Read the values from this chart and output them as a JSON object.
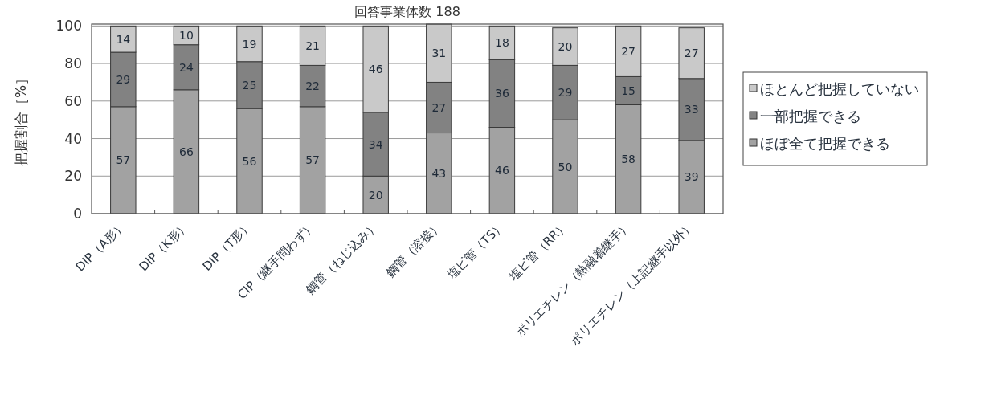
{
  "chart_data": {
    "type": "bar",
    "title": "回答事業体数 188",
    "ylabel": "把握割合［%］",
    "categories": [
      "DIP（A形）",
      "DIP（K形）",
      "DIP（T形）",
      "CIP（継手問わず）",
      "鋼管（ねじ込み）",
      "鋼管（溶接）",
      "塩ビ管（TS）",
      "塩ビ管（RR）",
      "ポリエチレン（熱融着継手）",
      "ポリエチレン（上記継手以外）"
    ],
    "series": [
      {
        "name": "ほぼ全て把握できる",
        "color": "#a2a2a2",
        "values": [
          57,
          66,
          56,
          57,
          20,
          43,
          46,
          50,
          58,
          39
        ]
      },
      {
        "name": "一部把握できる",
        "color": "#828282",
        "values": [
          29,
          24,
          25,
          22,
          34,
          27,
          36,
          29,
          15,
          33
        ]
      },
      {
        "name": "ほとんど把握していない",
        "color": "#c9c9c9",
        "values": [
          14,
          10,
          19,
          21,
          46,
          31,
          18,
          20,
          27,
          27
        ]
      }
    ],
    "stacked": true,
    "data_labels": true,
    "ylim": [
      0,
      101
    ],
    "yticks": [
      0,
      20,
      40,
      60,
      80,
      100
    ],
    "grid": "y",
    "legend": "right"
  }
}
